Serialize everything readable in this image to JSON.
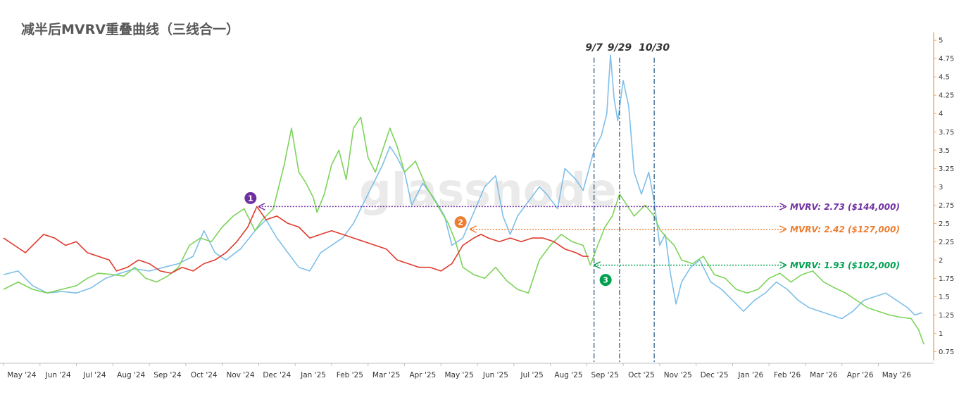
{
  "chart_data": {
    "type": "line",
    "title": "减半后MVRV重叠曲线（三线合一）",
    "watermark": "glassnode",
    "x_ticks": [
      "May '24",
      "Jun '24",
      "Jul '24",
      "Aug '24",
      "Sep '24",
      "Oct '24",
      "Nov '24",
      "Dec '24",
      "Jan '25",
      "Feb '25",
      "Mar '25",
      "Apr '25",
      "May '25",
      "Jun '25",
      "Jul '25",
      "Aug '25",
      "Sep '25",
      "Oct '25",
      "Nov '25",
      "Dec '25",
      "Jan '26",
      "Feb '26",
      "Mar '26",
      "Apr '26",
      "May '26"
    ],
    "y_ticks": [
      "5",
      "4.75",
      "4.5",
      "4.25",
      "4",
      "3.75",
      "3.5",
      "3.25",
      "3",
      "2.75",
      "2.5",
      "2.25",
      "2",
      "1.75",
      "1.5",
      "1.25",
      "1",
      "0.75"
    ],
    "ylim": [
      0.6,
      5.05
    ],
    "xlim": [
      0,
      25.4
    ],
    "vertical_markers": [
      {
        "label": "9/7",
        "x": 16.2
      },
      {
        "label": "9/29",
        "x": 16.9
      },
      {
        "label": "10/30",
        "x": 17.85
      }
    ],
    "annotations": [
      {
        "marker": "1",
        "color": "#7030a0",
        "label": "MVRV:  2.73  ($144,000)",
        "y": 2.73,
        "x_start": 6.95
      },
      {
        "marker": "2",
        "color": "#ed7d31",
        "label": "MVRV:  2.42  ($127,000)",
        "y": 2.42,
        "x_start": 12.75
      },
      {
        "marker": "3",
        "color": "#00a050",
        "label": "MVRV:  1.93  ($102,000)",
        "y": 1.93,
        "x_start": 16.15
      }
    ],
    "series": [
      {
        "color": "#7fbfe8",
        "points": [
          [
            0,
            1.8
          ],
          [
            0.4,
            1.85
          ],
          [
            0.8,
            1.65
          ],
          [
            1.2,
            1.55
          ],
          [
            1.6,
            1.57
          ],
          [
            2,
            1.55
          ],
          [
            2.4,
            1.62
          ],
          [
            2.8,
            1.75
          ],
          [
            3.2,
            1.82
          ],
          [
            3.6,
            1.88
          ],
          [
            4,
            1.85
          ],
          [
            4.4,
            1.9
          ],
          [
            4.8,
            1.95
          ],
          [
            5.2,
            2.05
          ],
          [
            5.5,
            2.4
          ],
          [
            5.8,
            2.1
          ],
          [
            6.1,
            2.0
          ],
          [
            6.5,
            2.15
          ],
          [
            6.9,
            2.4
          ],
          [
            7.2,
            2.55
          ],
          [
            7.5,
            2.3
          ],
          [
            7.8,
            2.1
          ],
          [
            8.1,
            1.9
          ],
          [
            8.4,
            1.85
          ],
          [
            8.7,
            2.1
          ],
          [
            9,
            2.2
          ],
          [
            9.3,
            2.3
          ],
          [
            9.6,
            2.5
          ],
          [
            9.9,
            2.8
          ],
          [
            10.2,
            3.1
          ],
          [
            10.4,
            3.3
          ],
          [
            10.6,
            3.55
          ],
          [
            10.8,
            3.4
          ],
          [
            11,
            3.2
          ],
          [
            11.2,
            2.75
          ],
          [
            11.5,
            3.05
          ],
          [
            11.8,
            2.85
          ],
          [
            12.1,
            2.6
          ],
          [
            12.3,
            2.2
          ],
          [
            12.6,
            2.3
          ],
          [
            12.9,
            2.65
          ],
          [
            13.2,
            3.0
          ],
          [
            13.5,
            3.15
          ],
          [
            13.7,
            2.6
          ],
          [
            13.9,
            2.35
          ],
          [
            14.1,
            2.6
          ],
          [
            14.4,
            2.8
          ],
          [
            14.7,
            3.0
          ],
          [
            14.9,
            2.9
          ],
          [
            15.2,
            2.7
          ],
          [
            15.4,
            3.25
          ],
          [
            15.7,
            3.1
          ],
          [
            15.9,
            2.95
          ],
          [
            16.2,
            3.5
          ],
          [
            16.4,
            3.7
          ],
          [
            16.55,
            4.0
          ],
          [
            16.65,
            4.8
          ],
          [
            16.75,
            4.2
          ],
          [
            16.85,
            3.9
          ],
          [
            17.0,
            4.45
          ],
          [
            17.15,
            4.1
          ],
          [
            17.3,
            3.2
          ],
          [
            17.5,
            2.9
          ],
          [
            17.7,
            3.2
          ],
          [
            17.85,
            2.8
          ],
          [
            18.0,
            2.2
          ],
          [
            18.15,
            2.35
          ],
          [
            18.3,
            1.8
          ],
          [
            18.45,
            1.4
          ],
          [
            18.6,
            1.7
          ],
          [
            18.85,
            1.9
          ],
          [
            19.1,
            2.0
          ],
          [
            19.4,
            1.7
          ],
          [
            19.7,
            1.6
          ],
          [
            20,
            1.45
          ],
          [
            20.3,
            1.3
          ],
          [
            20.6,
            1.45
          ],
          [
            20.9,
            1.55
          ],
          [
            21.2,
            1.7
          ],
          [
            21.5,
            1.6
          ],
          [
            21.8,
            1.45
          ],
          [
            22.1,
            1.35
          ],
          [
            22.4,
            1.3
          ],
          [
            22.7,
            1.25
          ],
          [
            23.0,
            1.2
          ],
          [
            23.3,
            1.3
          ],
          [
            23.6,
            1.45
          ],
          [
            23.9,
            1.5
          ],
          [
            24.2,
            1.55
          ],
          [
            24.5,
            1.45
          ],
          [
            24.8,
            1.35
          ],
          [
            25.0,
            1.25
          ],
          [
            25.2,
            1.28
          ]
        ]
      },
      {
        "color": "#7dd35a",
        "points": [
          [
            0,
            1.6
          ],
          [
            0.4,
            1.7
          ],
          [
            0.8,
            1.6
          ],
          [
            1.2,
            1.55
          ],
          [
            1.6,
            1.6
          ],
          [
            2,
            1.65
          ],
          [
            2.3,
            1.75
          ],
          [
            2.6,
            1.82
          ],
          [
            3,
            1.8
          ],
          [
            3.3,
            1.78
          ],
          [
            3.6,
            1.9
          ],
          [
            3.9,
            1.75
          ],
          [
            4.2,
            1.7
          ],
          [
            4.5,
            1.78
          ],
          [
            4.8,
            1.9
          ],
          [
            5.1,
            2.2
          ],
          [
            5.4,
            2.3
          ],
          [
            5.7,
            2.25
          ],
          [
            6.0,
            2.45
          ],
          [
            6.3,
            2.6
          ],
          [
            6.6,
            2.7
          ],
          [
            6.9,
            2.4
          ],
          [
            7.1,
            2.55
          ],
          [
            7.4,
            2.7
          ],
          [
            7.7,
            3.3
          ],
          [
            7.9,
            3.8
          ],
          [
            8.1,
            3.2
          ],
          [
            8.3,
            3.05
          ],
          [
            8.5,
            2.85
          ],
          [
            8.6,
            2.65
          ],
          [
            8.8,
            2.9
          ],
          [
            9.0,
            3.3
          ],
          [
            9.2,
            3.5
          ],
          [
            9.4,
            3.1
          ],
          [
            9.6,
            3.8
          ],
          [
            9.8,
            3.95
          ],
          [
            10.0,
            3.4
          ],
          [
            10.2,
            3.2
          ],
          [
            10.4,
            3.5
          ],
          [
            10.6,
            3.8
          ],
          [
            10.8,
            3.55
          ],
          [
            11.0,
            3.2
          ],
          [
            11.3,
            3.35
          ],
          [
            11.6,
            3.0
          ],
          [
            11.9,
            2.75
          ],
          [
            12.2,
            2.5
          ],
          [
            12.4,
            2.25
          ],
          [
            12.6,
            1.9
          ],
          [
            12.9,
            1.8
          ],
          [
            13.2,
            1.75
          ],
          [
            13.5,
            1.9
          ],
          [
            13.8,
            1.72
          ],
          [
            14.1,
            1.6
          ],
          [
            14.4,
            1.55
          ],
          [
            14.7,
            2.0
          ],
          [
            15.0,
            2.2
          ],
          [
            15.3,
            2.35
          ],
          [
            15.6,
            2.25
          ],
          [
            15.9,
            2.2
          ],
          [
            16.1,
            1.93
          ],
          [
            16.3,
            2.2
          ],
          [
            16.5,
            2.45
          ],
          [
            16.7,
            2.6
          ],
          [
            16.9,
            2.9
          ],
          [
            17.1,
            2.75
          ],
          [
            17.3,
            2.6
          ],
          [
            17.6,
            2.75
          ],
          [
            17.85,
            2.6
          ],
          [
            18.0,
            2.42
          ],
          [
            18.2,
            2.3
          ],
          [
            18.4,
            2.2
          ],
          [
            18.6,
            2.0
          ],
          [
            18.9,
            1.95
          ],
          [
            19.2,
            2.05
          ],
          [
            19.5,
            1.8
          ],
          [
            19.8,
            1.75
          ],
          [
            20.1,
            1.6
          ],
          [
            20.4,
            1.55
          ],
          [
            20.7,
            1.6
          ],
          [
            21.0,
            1.75
          ],
          [
            21.3,
            1.82
          ],
          [
            21.6,
            1.7
          ],
          [
            21.9,
            1.8
          ],
          [
            22.2,
            1.85
          ],
          [
            22.5,
            1.7
          ],
          [
            22.8,
            1.62
          ],
          [
            23.1,
            1.55
          ],
          [
            23.4,
            1.45
          ],
          [
            23.7,
            1.35
          ],
          [
            24.0,
            1.3
          ],
          [
            24.3,
            1.25
          ],
          [
            24.6,
            1.22
          ],
          [
            24.9,
            1.2
          ],
          [
            25.1,
            1.05
          ],
          [
            25.25,
            0.85
          ]
        ]
      },
      {
        "color": "#e03a2c",
        "points": [
          [
            0,
            2.3
          ],
          [
            0.3,
            2.2
          ],
          [
            0.6,
            2.1
          ],
          [
            0.9,
            2.25
          ],
          [
            1.1,
            2.35
          ],
          [
            1.4,
            2.3
          ],
          [
            1.7,
            2.2
          ],
          [
            2.0,
            2.25
          ],
          [
            2.3,
            2.1
          ],
          [
            2.6,
            2.05
          ],
          [
            2.9,
            2.0
          ],
          [
            3.1,
            1.85
          ],
          [
            3.4,
            1.9
          ],
          [
            3.7,
            2.0
          ],
          [
            4.0,
            1.95
          ],
          [
            4.3,
            1.85
          ],
          [
            4.6,
            1.82
          ],
          [
            4.9,
            1.9
          ],
          [
            5.2,
            1.85
          ],
          [
            5.5,
            1.95
          ],
          [
            5.8,
            2.0
          ],
          [
            6.1,
            2.1
          ],
          [
            6.4,
            2.25
          ],
          [
            6.7,
            2.45
          ],
          [
            6.95,
            2.73
          ],
          [
            7.2,
            2.55
          ],
          [
            7.5,
            2.6
          ],
          [
            7.8,
            2.5
          ],
          [
            8.1,
            2.45
          ],
          [
            8.4,
            2.3
          ],
          [
            8.7,
            2.35
          ],
          [
            9.0,
            2.4
          ],
          [
            9.3,
            2.35
          ],
          [
            9.6,
            2.3
          ],
          [
            9.9,
            2.25
          ],
          [
            10.2,
            2.2
          ],
          [
            10.5,
            2.15
          ],
          [
            10.8,
            2.0
          ],
          [
            11.1,
            1.95
          ],
          [
            11.4,
            1.9
          ],
          [
            11.7,
            1.9
          ],
          [
            12.0,
            1.85
          ],
          [
            12.3,
            1.95
          ],
          [
            12.6,
            2.2
          ],
          [
            12.9,
            2.3
          ],
          [
            13.1,
            2.35
          ],
          [
            13.3,
            2.3
          ],
          [
            13.6,
            2.25
          ],
          [
            13.9,
            2.3
          ],
          [
            14.2,
            2.25
          ],
          [
            14.5,
            2.3
          ],
          [
            14.8,
            2.3
          ],
          [
            15.1,
            2.25
          ],
          [
            15.4,
            2.15
          ],
          [
            15.7,
            2.1
          ],
          [
            15.9,
            2.05
          ],
          [
            16.05,
            2.05
          ]
        ]
      }
    ]
  }
}
